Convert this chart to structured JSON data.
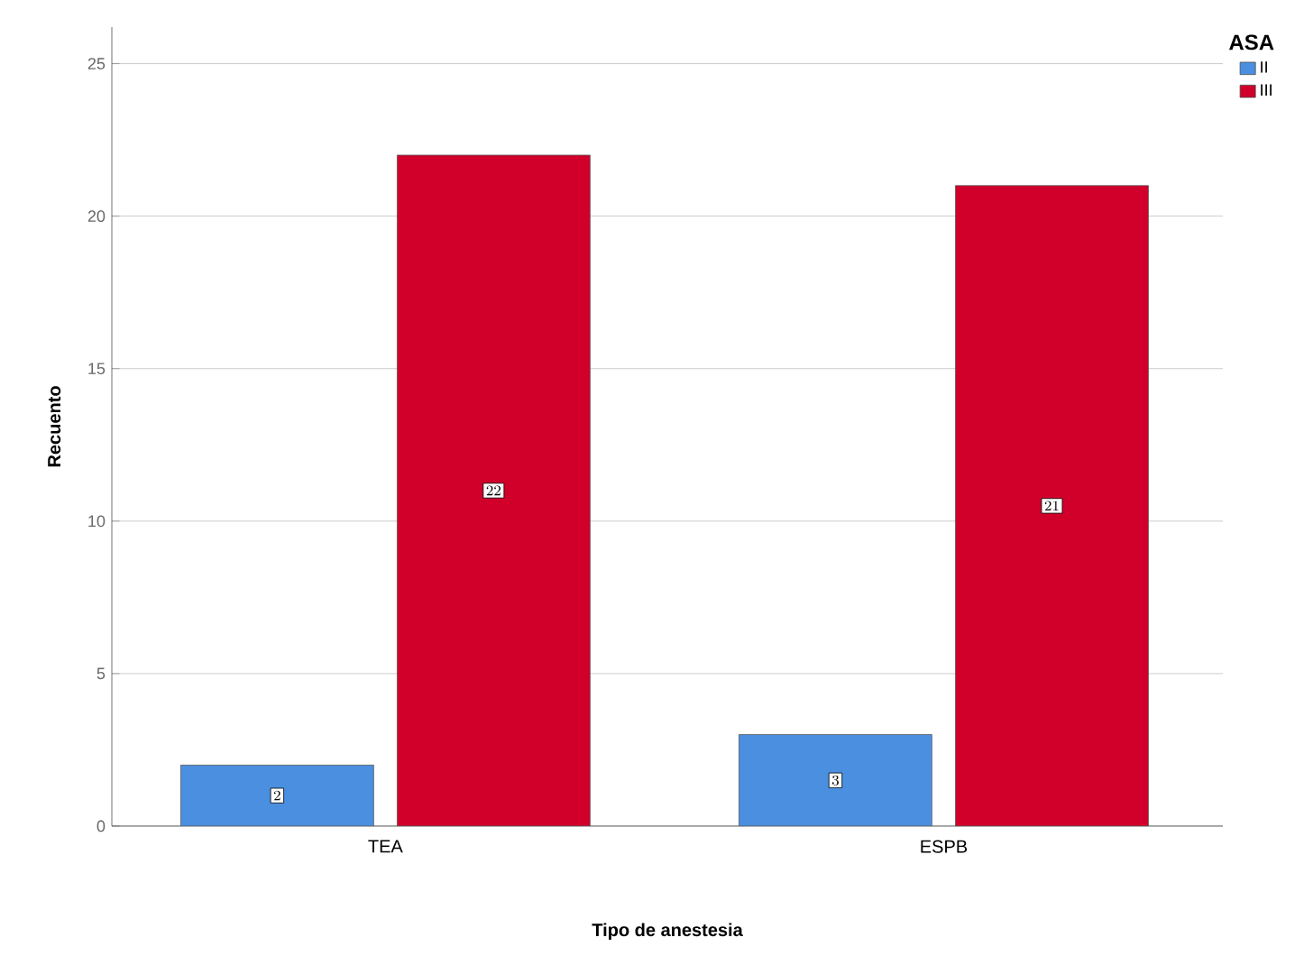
{
  "chart_data": {
    "type": "bar",
    "xlabel": "Tipo de anestesia",
    "ylabel": "Recuento",
    "legend_title": "ASA",
    "categories": [
      "TEA",
      "ESPB"
    ],
    "series": [
      {
        "name": "II",
        "color": "#4a8fe0",
        "values": [
          2,
          3
        ]
      },
      {
        "name": "III",
        "color": "#d0002b",
        "values": [
          22,
          21
        ]
      }
    ],
    "ylim": [
      0,
      26.2
    ],
    "yticks": [
      0,
      5,
      10,
      15,
      20,
      25
    ],
    "grid": "y",
    "legend": "top right",
    "data_labels": true
  }
}
